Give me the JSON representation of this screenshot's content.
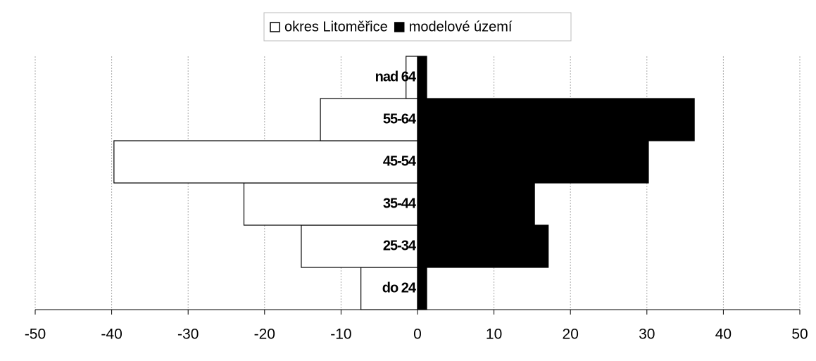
{
  "chart_data": {
    "type": "bar",
    "orientation": "horizontal",
    "categories": [
      "do 24",
      "25-34",
      "35-44",
      "45-54",
      "55-64",
      "nad 64"
    ],
    "series": [
      {
        "name": "okres Litoměřice",
        "color": "#ffffff",
        "values": [
          -7.4,
          -15.2,
          -22.7,
          -39.7,
          -12.7,
          -1.5
        ]
      },
      {
        "name": "modelové území",
        "color": "#000000",
        "values": [
          1.2,
          17.1,
          15.3,
          30.2,
          36.2,
          1.2
        ]
      }
    ],
    "xlim": [
      -50,
      50
    ],
    "xticks": [
      -50,
      -40,
      -30,
      -20,
      -10,
      0,
      10,
      20,
      30,
      40,
      50
    ],
    "grid": true,
    "legend": "top"
  }
}
